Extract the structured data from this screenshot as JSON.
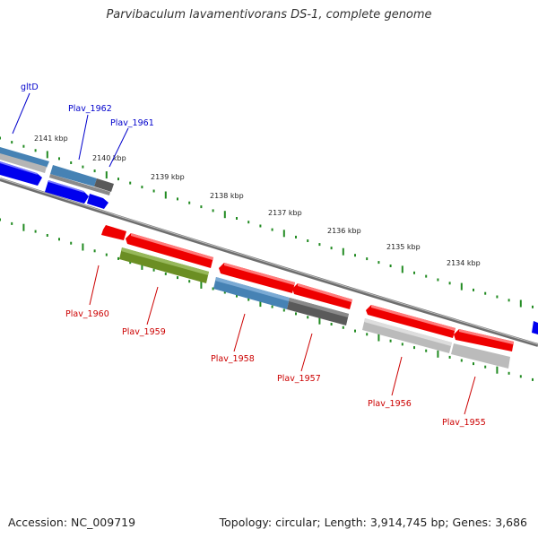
{
  "title": "Parvibaculum lavamentivorans DS-1, complete genome",
  "footer": {
    "accession": "Accession: NC_009719",
    "summary": "Topology: circular; Length: 3,914,745 bp; Genes: 3,686"
  },
  "colors": {
    "forward_label": "#0000cc",
    "reverse_label": "#cc0000",
    "backbone": "#808080",
    "tick": "#228b22",
    "gene_red": "#ee0000",
    "gene_blue": "#0000ee",
    "cds_steelblue": "#4682b4",
    "cds_gray": "#5a5a5a",
    "cds_lightgray": "#bbbbbb",
    "cds_olive": "#6b8e23"
  },
  "scale_labels": [
    "2141 kbp",
    "2140 kbp",
    "2139 kbp",
    "2138 kbp",
    "2137 kbp",
    "2136 kbp",
    "2135 kbp",
    "2134 kbp"
  ],
  "forward_labels": [
    "gltD",
    "Plav_1962",
    "Plav_1961"
  ],
  "reverse_labels": [
    "Plav_1960",
    "Plav_1959",
    "Plav_1958",
    "Plav_1957",
    "Plav_1956",
    "Plav_1955"
  ]
}
